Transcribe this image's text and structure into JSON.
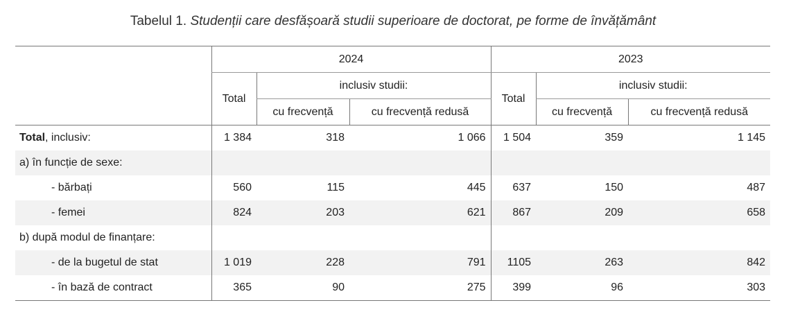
{
  "caption": {
    "prefix": "Tabelul 1.",
    "title": "Studenții care desfășoară studii superioare de doctorat, pe forme de învățământ"
  },
  "headers": {
    "year_a": "2024",
    "year_b": "2023",
    "total": "Total",
    "inclusiv": "inclusiv studii:",
    "cu_frecventa": "cu frecvență",
    "cu_frecventa_redusa": "cu frecvență redusă"
  },
  "rows": [
    {
      "label_bold": "Total",
      "label_rest": ", inclusiv:",
      "v": [
        "1 384",
        "318",
        "1 066",
        "1 504",
        "359",
        "1 145"
      ]
    },
    {
      "label": "a) în funcție de sexe:"
    },
    {
      "label": "- bărbați",
      "v": [
        "560",
        "115",
        "445",
        "637",
        "150",
        "487"
      ]
    },
    {
      "label": "- femei",
      "v": [
        "824",
        "203",
        "621",
        "867",
        "209",
        "658"
      ]
    },
    {
      "label": "b) după modul de finanțare:"
    },
    {
      "label": "- de la bugetul de stat",
      "v": [
        "1 019",
        "228",
        "791",
        "1105",
        "263",
        "842"
      ]
    },
    {
      "label": "- în bază de contract",
      "v": [
        "365",
        "90",
        "275",
        "399",
        "96",
        "303"
      ]
    }
  ]
}
